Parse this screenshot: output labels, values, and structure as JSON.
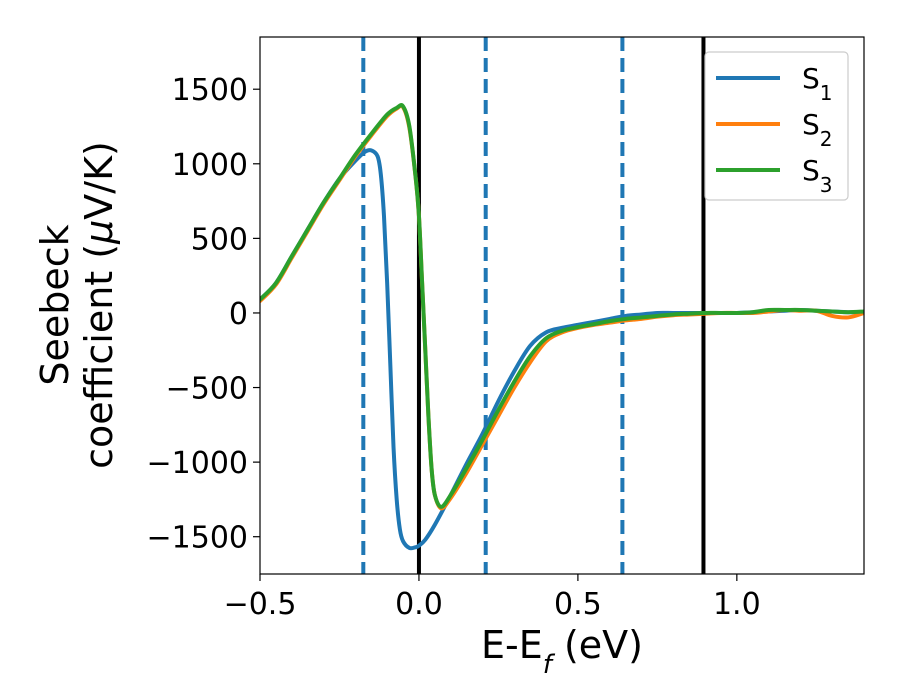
{
  "chart_data": {
    "type": "line",
    "title": "",
    "xlabel": "E-E",
    "xlabel_sub": "f",
    "xlabel_suffix": " (eV)",
    "ylabel_line1": "Seebeck",
    "ylabel_line2": "coefficient  (",
    "ylabel_mu": "μ",
    "ylabel_line2_suffix": "V/K)",
    "xlim": [
      -0.5,
      1.4
    ],
    "ylim": [
      -1750,
      1850
    ],
    "xticks": [
      -0.5,
      0.0,
      0.5,
      1.0
    ],
    "xtick_labels": [
      "−0.5",
      "0.0",
      "0.5",
      "1.0"
    ],
    "yticks": [
      -1500,
      -1000,
      -500,
      0,
      500,
      1000,
      1500
    ],
    "ytick_labels": [
      "−1500",
      "−1000",
      "−500",
      "0",
      "500",
      "1000",
      "1500"
    ],
    "grid": false,
    "legend_position": "top-right",
    "vlines": [
      {
        "x": -0.175,
        "style": "dashed",
        "color": "#1f77b4"
      },
      {
        "x": 0.0,
        "style": "solid",
        "color": "#000000"
      },
      {
        "x": 0.21,
        "style": "dashed",
        "color": "#1f77b4"
      },
      {
        "x": 0.64,
        "style": "dashed",
        "color": "#1f77b4"
      },
      {
        "x": 0.895,
        "style": "solid",
        "color": "#000000"
      }
    ],
    "series": [
      {
        "name": "S",
        "sub": "1",
        "color": "#1f77b4",
        "x": [
          -0.5,
          -0.45,
          -0.4,
          -0.35,
          -0.3,
          -0.25,
          -0.2,
          -0.17,
          -0.15,
          -0.13,
          -0.12,
          -0.11,
          -0.1,
          -0.09,
          -0.08,
          -0.07,
          -0.06,
          -0.05,
          -0.03,
          -0.01,
          0.0,
          0.02,
          0.05,
          0.1,
          0.15,
          0.2,
          0.25,
          0.3,
          0.35,
          0.4,
          0.45,
          0.5,
          0.55,
          0.6,
          0.65,
          0.7,
          0.75,
          0.8,
          0.85,
          0.9,
          0.95,
          1.0,
          1.05,
          1.1,
          1.15,
          1.2,
          1.25,
          1.3,
          1.35,
          1.4
        ],
        "y": [
          90,
          200,
          380,
          560,
          740,
          900,
          1020,
          1080,
          1090,
          1050,
          930,
          650,
          200,
          -350,
          -900,
          -1250,
          -1450,
          -1530,
          -1575,
          -1570,
          -1560,
          -1520,
          -1420,
          -1220,
          -1010,
          -810,
          -590,
          -390,
          -220,
          -130,
          -100,
          -80,
          -60,
          -40,
          -20,
          -10,
          0,
          0,
          0,
          0,
          0,
          0,
          5,
          10,
          15,
          20,
          15,
          10,
          5,
          5
        ]
      },
      {
        "name": "S",
        "sub": "2",
        "color": "#ff7f0e",
        "x": [
          -0.5,
          -0.45,
          -0.4,
          -0.35,
          -0.3,
          -0.25,
          -0.2,
          -0.15,
          -0.1,
          -0.07,
          -0.05,
          -0.03,
          -0.01,
          0.0,
          0.01,
          0.02,
          0.03,
          0.04,
          0.05,
          0.07,
          0.1,
          0.15,
          0.2,
          0.25,
          0.3,
          0.35,
          0.4,
          0.45,
          0.5,
          0.55,
          0.6,
          0.65,
          0.7,
          0.75,
          0.8,
          0.85,
          0.9,
          0.95,
          1.0,
          1.05,
          1.1,
          1.15,
          1.2,
          1.25,
          1.3,
          1.35,
          1.4
        ],
        "y": [
          80,
          190,
          370,
          550,
          730,
          890,
          1050,
          1190,
          1320,
          1370,
          1380,
          1240,
          900,
          650,
          200,
          -250,
          -700,
          -1050,
          -1220,
          -1310,
          -1240,
          -1070,
          -880,
          -690,
          -500,
          -330,
          -190,
          -130,
          -100,
          -80,
          -65,
          -50,
          -40,
          -25,
          -15,
          -10,
          -5,
          0,
          0,
          0,
          10,
          20,
          15,
          15,
          -20,
          -30,
          0
        ]
      },
      {
        "name": "S",
        "sub": "3",
        "color": "#2ca02c",
        "x": [
          -0.5,
          -0.45,
          -0.4,
          -0.35,
          -0.3,
          -0.25,
          -0.2,
          -0.15,
          -0.1,
          -0.07,
          -0.05,
          -0.03,
          -0.01,
          0.0,
          0.01,
          0.02,
          0.03,
          0.04,
          0.05,
          0.07,
          0.1,
          0.15,
          0.2,
          0.25,
          0.3,
          0.35,
          0.4,
          0.45,
          0.5,
          0.55,
          0.6,
          0.65,
          0.7,
          0.75,
          0.8,
          0.85,
          0.9,
          0.95,
          1.0,
          1.05,
          1.1,
          1.15,
          1.2,
          1.25,
          1.3,
          1.35,
          1.4
        ],
        "y": [
          90,
          200,
          380,
          560,
          740,
          900,
          1060,
          1200,
          1330,
          1375,
          1385,
          1250,
          900,
          650,
          200,
          -250,
          -700,
          -1050,
          -1220,
          -1300,
          -1220,
          -1040,
          -850,
          -650,
          -460,
          -290,
          -170,
          -120,
          -95,
          -75,
          -55,
          -40,
          -30,
          -20,
          -10,
          -5,
          0,
          0,
          0,
          5,
          20,
          20,
          20,
          15,
          10,
          5,
          10
        ]
      }
    ]
  }
}
